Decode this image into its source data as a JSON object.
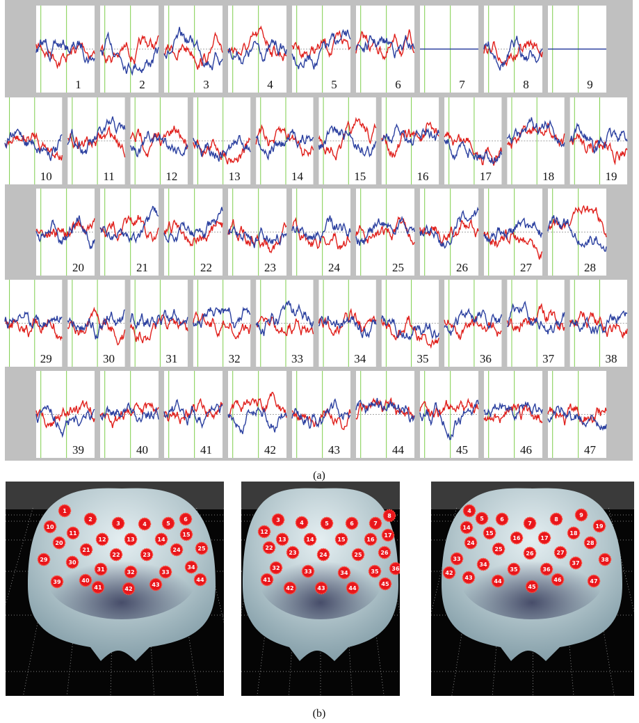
{
  "panels": {
    "a": {
      "label": "(a)",
      "channels": [
        "1",
        "2",
        "3",
        "4",
        "5",
        "6",
        "7",
        "8",
        "9",
        "10",
        "11",
        "12",
        "13",
        "14",
        "15",
        "16",
        "17",
        "18",
        "19",
        "20",
        "21",
        "22",
        "23",
        "24",
        "25",
        "26",
        "27",
        "28",
        "29",
        "30",
        "31",
        "32",
        "33",
        "34",
        "35",
        "36",
        "37",
        "38",
        "39",
        "40",
        "41",
        "42",
        "43",
        "44",
        "45",
        "46",
        "47"
      ]
    },
    "b": {
      "label": "(b)",
      "views": [
        [
          "1",
          "2",
          "3",
          "4",
          "5",
          "6",
          "10",
          "11",
          "12",
          "13",
          "14",
          "15",
          "20",
          "21",
          "22",
          "23",
          "24",
          "25",
          "29",
          "30",
          "31",
          "32",
          "33",
          "34",
          "39",
          "40",
          "41",
          "42",
          "43",
          "44"
        ],
        [
          "3",
          "4",
          "5",
          "6",
          "7",
          "8",
          "12",
          "13",
          "14",
          "15",
          "16",
          "17",
          "22",
          "23",
          "24",
          "25",
          "26",
          "32",
          "33",
          "34",
          "35",
          "36",
          "41",
          "42",
          "43",
          "44",
          "45"
        ],
        [
          "4",
          "5",
          "6",
          "7",
          "8",
          "9",
          "14",
          "15",
          "16",
          "17",
          "18",
          "19",
          "24",
          "25",
          "26",
          "27",
          "28",
          "33",
          "34",
          "35",
          "36",
          "37",
          "38",
          "42",
          "43",
          "44",
          "45",
          "46",
          "47"
        ]
      ]
    }
  }
}
